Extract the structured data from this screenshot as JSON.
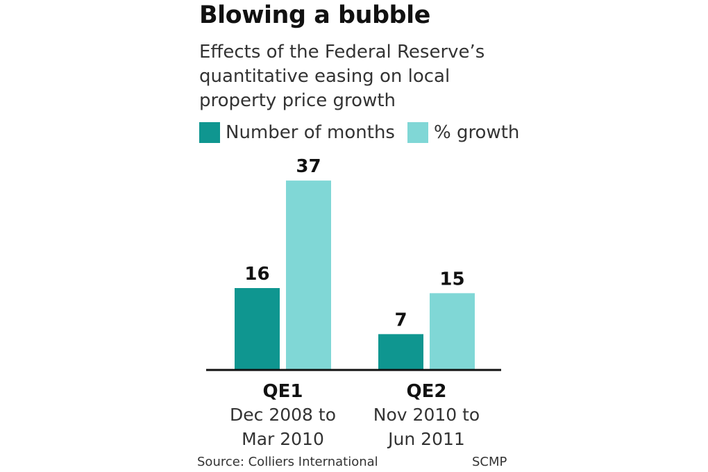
{
  "chart_data": {
    "type": "bar",
    "title": "Blowing a bubble",
    "subtitle": "Effects of the Federal Reserve’s quantitative easing on local property price growth",
    "categories": [
      "QE1",
      "QE2"
    ],
    "category_sublabels": [
      [
        "Dec 2008 to",
        "Mar 2010"
      ],
      [
        "Nov 2010 to",
        "Jun 2011"
      ]
    ],
    "series": [
      {
        "name": "Number of months",
        "values": [
          16,
          7
        ],
        "color": "#0f9690"
      },
      {
        "name": "% growth",
        "values": [
          37,
          15
        ],
        "color": "#80d7d6"
      }
    ],
    "ylim": [
      0,
      37
    ],
    "grid": false,
    "legend": "top-left",
    "source": "Source: Colliers International",
    "credit": "SCMP"
  }
}
